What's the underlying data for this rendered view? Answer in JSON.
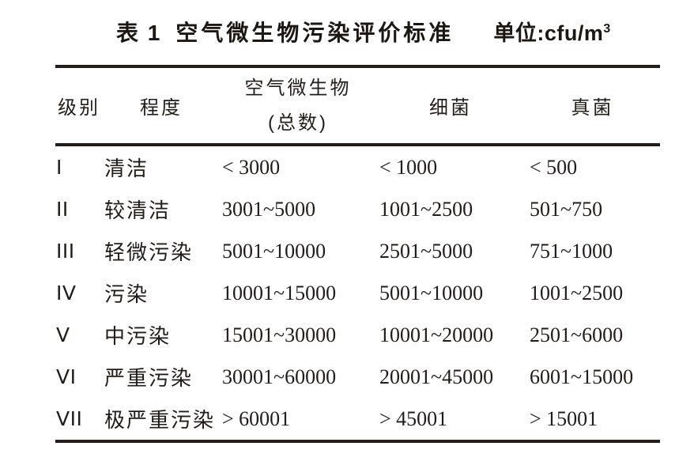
{
  "title": {
    "label": "表 1",
    "text": "空气微生物污染评价标准",
    "unit_text": "单位:cfu/m",
    "unit_sup": "3"
  },
  "table": {
    "headers": {
      "level": "级别",
      "degree": "程度",
      "total_line1": "空气微生物",
      "total_line2": "(总数)",
      "bacteria": "细菌",
      "fungi": "真菌"
    },
    "rows": [
      {
        "level": "I",
        "degree": "清洁",
        "total": "< 3000",
        "bacteria": "< 1000",
        "fungi": "< 500"
      },
      {
        "level": "II",
        "degree": "较清洁",
        "total": "3001~5000",
        "bacteria": "1001~2500",
        "fungi": "501~750"
      },
      {
        "level": "III",
        "degree": "轻微污染",
        "total": "5001~10000",
        "bacteria": "2501~5000",
        "fungi": "751~1000"
      },
      {
        "level": "IV",
        "degree": "污染",
        "total": "10001~15000",
        "bacteria": "5001~10000",
        "fungi": "1001~2500"
      },
      {
        "level": "V",
        "degree": "中污染",
        "total": "15001~30000",
        "bacteria": "10001~20000",
        "fungi": "2501~6000"
      },
      {
        "level": "VI",
        "degree": "严重污染",
        "total": "30001~60000",
        "bacteria": "20001~45000",
        "fungi": "6001~15000"
      },
      {
        "level": "VII",
        "degree": "极严重污染",
        "total": "> 60001",
        "bacteria": "> 45001",
        "fungi": "> 15001"
      }
    ],
    "colors": {
      "rule": "#241d19",
      "text": "#211c19"
    }
  }
}
